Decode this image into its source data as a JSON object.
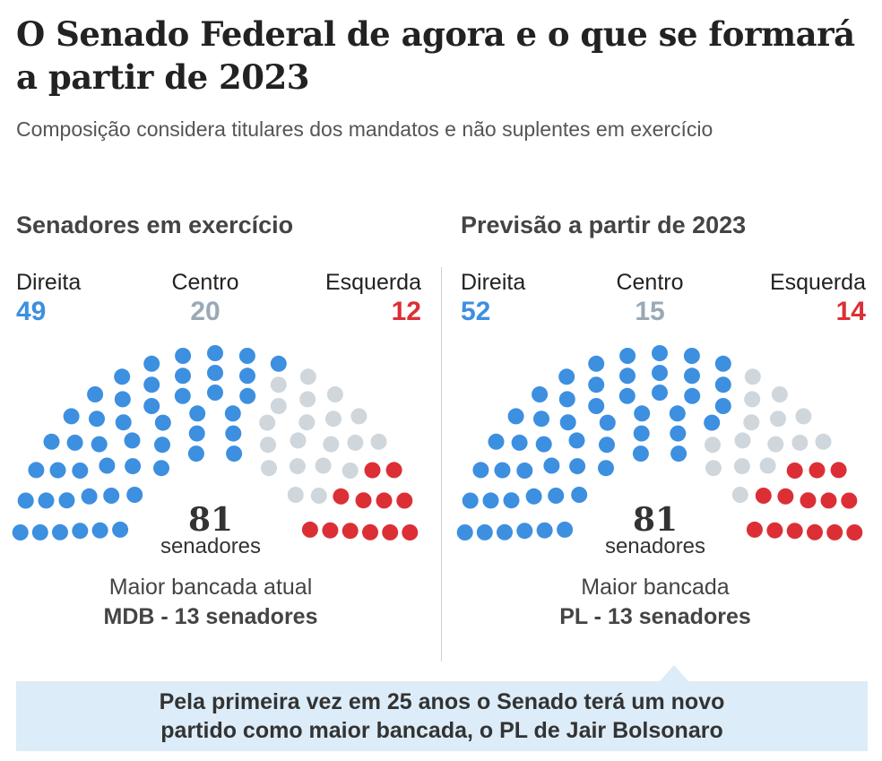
{
  "title": "O Senado Federal de agora e o que se formará a partir de 2023",
  "subtitle": "Composição considera titulares dos mandatos e não suplentes em exercício",
  "colors": {
    "direita": "#3d8fe0",
    "centro": "#cfd6dc",
    "esquerda": "#dc2f35"
  },
  "panels": [
    {
      "heading": "Senadores em exercício",
      "groups": [
        {
          "label": "Direita",
          "value": "49"
        },
        {
          "label": "Centro",
          "value": "20"
        },
        {
          "label": "Esquerda",
          "value": "12"
        }
      ],
      "total": "81",
      "total_label": "senadores",
      "bancada_label": "Maior bancada atual",
      "bancada_value": "MDB - 13 senadores"
    },
    {
      "heading": "Previsão a partir de 2023",
      "groups": [
        {
          "label": "Direita",
          "value": "52"
        },
        {
          "label": "Centro",
          "value": "15"
        },
        {
          "label": "Esquerda",
          "value": "14"
        }
      ],
      "total": "81",
      "total_label": "senadores",
      "bancada_label": "Maior bancada",
      "bancada_value": "PL - 13 senadores"
    }
  ],
  "note": {
    "line1": "Pela primeira vez em 25 anos o Senado terá um novo",
    "line2": "partido como maior bancada, o PL de Jair Bolsonaro"
  },
  "chart_data": [
    {
      "type": "parliament",
      "title": "Senadores em exercício",
      "categories": [
        "Direita",
        "Centro",
        "Esquerda"
      ],
      "values": [
        49,
        20,
        12
      ],
      "total": 81
    },
    {
      "type": "parliament",
      "title": "Previsão a partir de 2023",
      "categories": [
        "Direita",
        "Centro",
        "Esquerda"
      ],
      "values": [
        52,
        15,
        14
      ],
      "total": 81
    }
  ]
}
